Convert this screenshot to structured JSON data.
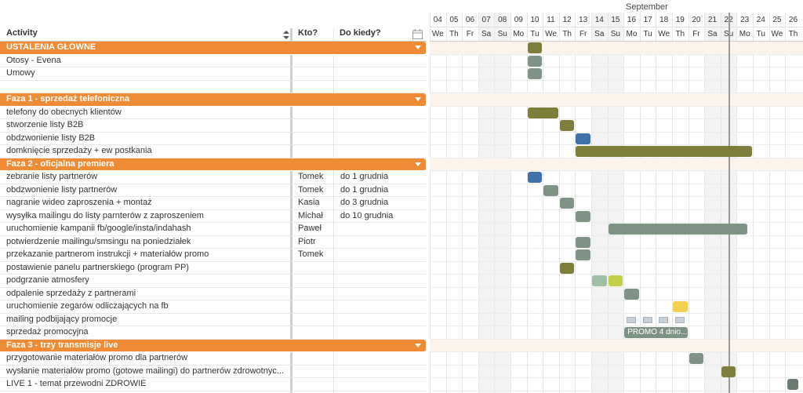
{
  "columns": {
    "activity": "Activity",
    "who": "Kto?",
    "when": "Do kiedy?"
  },
  "month": "September",
  "days": [
    {
      "n": "04",
      "d": "We"
    },
    {
      "n": "05",
      "d": "Th"
    },
    {
      "n": "06",
      "d": "Fr"
    },
    {
      "n": "07",
      "d": "Sa"
    },
    {
      "n": "08",
      "d": "Su"
    },
    {
      "n": "09",
      "d": "Mo"
    },
    {
      "n": "10",
      "d": "Tu"
    },
    {
      "n": "11",
      "d": "We"
    },
    {
      "n": "12",
      "d": "Th"
    },
    {
      "n": "13",
      "d": "Fr"
    },
    {
      "n": "14",
      "d": "Sa"
    },
    {
      "n": "15",
      "d": "Su"
    },
    {
      "n": "16",
      "d": "Mo"
    },
    {
      "n": "17",
      "d": "Tu"
    },
    {
      "n": "18",
      "d": "We"
    },
    {
      "n": "19",
      "d": "Th"
    },
    {
      "n": "20",
      "d": "Fr"
    },
    {
      "n": "21",
      "d": "Sa"
    },
    {
      "n": "22",
      "d": "Su"
    },
    {
      "n": "23",
      "d": "Mo"
    },
    {
      "n": "24",
      "d": "Tu"
    },
    {
      "n": "25",
      "d": "We"
    },
    {
      "n": "26",
      "d": "Th"
    }
  ],
  "rows": [
    {
      "type": "group",
      "activity": "USTALENIA GŁÓWNE"
    },
    {
      "activity": "Otosy - Evena",
      "who": "",
      "when": ""
    },
    {
      "activity": "Umowy",
      "who": "",
      "when": ""
    },
    {
      "activity": "",
      "who": "",
      "when": ""
    },
    {
      "type": "group",
      "activity": "Faza 1 - sprzedaż telefoniczna"
    },
    {
      "activity": "telefony do obecnych klientów",
      "who": "",
      "when": ""
    },
    {
      "activity": "stworzenie listy B2B",
      "who": "",
      "when": ""
    },
    {
      "activity": "obdzwonienie listy B2B",
      "who": "",
      "when": ""
    },
    {
      "activity": "domknięcie sprzedaży + ew postkania",
      "who": "",
      "when": ""
    },
    {
      "type": "group",
      "activity": "Faza 2 - oficjalna premiera"
    },
    {
      "activity": "zebranie listy partnerów",
      "who": "Tomek",
      "when": "do 1 grudnia"
    },
    {
      "activity": "obdzwonienie listy partnerów",
      "who": "Tomek",
      "when": "do 1 grudnia"
    },
    {
      "activity": "nagranie wideo zaproszenia + montaż",
      "who": "Kasia",
      "when": "do 3 grudnia"
    },
    {
      "activity": "wysyłka mailingu do listy parnterów z zaproszeniem",
      "who": "Michał",
      "when": "do 10 grudnia"
    },
    {
      "activity": "uruchomienie kampanii fb/google/insta/indahash",
      "who": "Paweł",
      "when": ""
    },
    {
      "activity": "potwierdzenie mailingu/smsingu na poniedziałek",
      "who": "Piotr",
      "when": ""
    },
    {
      "activity": "przekazanie partnerom instrukcji + materiałów promo",
      "who": "Tomek",
      "when": ""
    },
    {
      "activity": "postawienie panelu partnerskiego (program PP)",
      "who": "",
      "when": ""
    },
    {
      "activity": "podgrzanie atmosfery",
      "who": "",
      "when": ""
    },
    {
      "activity": "odpalenie sprzedaży z partnerami",
      "who": "",
      "when": ""
    },
    {
      "activity": "uruchomienie zegarów odliczających na fb",
      "who": "",
      "when": ""
    },
    {
      "activity": "mailing podbijający promocje",
      "who": "",
      "when": ""
    },
    {
      "activity": "sprzedaż promocyjna",
      "who": "",
      "when": ""
    },
    {
      "type": "group",
      "activity": "Faza 3 - trzy transmisje live"
    },
    {
      "activity": "przygotowanie materiałów promo dla partnerów",
      "who": "",
      "when": ""
    },
    {
      "activity": "wysłanie materiałów  promo (gotowe mailingi) do partnerów  zdrowotnyc...",
      "who": "",
      "when": ""
    },
    {
      "activity": "LIVE 1 - temat przewodni ZDROWIE",
      "who": "",
      "when": ""
    }
  ],
  "bars": [
    {
      "row": 0,
      "start": 6,
      "len": 1,
      "color": "#7d7d3c"
    },
    {
      "row": 1,
      "start": 6,
      "len": 1,
      "color": "#7f9486"
    },
    {
      "row": 2,
      "start": 6,
      "len": 1,
      "color": "#7f9486"
    },
    {
      "row": 5,
      "start": 6,
      "len": 2,
      "color": "#7d7d3c"
    },
    {
      "row": 6,
      "start": 8,
      "len": 1,
      "color": "#7d7d3c"
    },
    {
      "row": 7,
      "start": 9,
      "len": 1,
      "color": "#3f72a8"
    },
    {
      "row": 8,
      "start": 9,
      "len": 11,
      "color": "#7d7d3c"
    },
    {
      "row": 10,
      "start": 6,
      "len": 1,
      "color": "#3f72a8"
    },
    {
      "row": 11,
      "start": 7,
      "len": 1,
      "color": "#7f9486"
    },
    {
      "row": 12,
      "start": 8,
      "len": 1,
      "color": "#7f9486"
    },
    {
      "row": 13,
      "start": 9,
      "len": 1,
      "color": "#7f9486"
    },
    {
      "row": 14,
      "start": 11,
      "len": 8.7,
      "color": "#7f9486"
    },
    {
      "row": 15,
      "start": 9,
      "len": 1,
      "color": "#7f9486"
    },
    {
      "row": 16,
      "start": 9,
      "len": 1,
      "color": "#7f9486"
    },
    {
      "row": 17,
      "start": 8,
      "len": 1,
      "color": "#7d7d3c"
    },
    {
      "row": 18,
      "start": 10,
      "len": 1,
      "color": "#9cbfa5"
    },
    {
      "row": 18,
      "start": 11,
      "len": 1,
      "color": "#c3cf48"
    },
    {
      "row": 19,
      "start": 12,
      "len": 1,
      "color": "#7f9486"
    },
    {
      "row": 20,
      "start": 15,
      "len": 1,
      "color": "#f2d14f"
    },
    {
      "row": 24,
      "start": 16,
      "len": 1,
      "color": "#7f9486"
    },
    {
      "row": 25,
      "start": 18,
      "len": 1,
      "color": "#7d7d3c"
    }
  ],
  "promo": {
    "label": "PROMO 4 dnio..."
  },
  "icons": {
    "calendar": "calendar-icon",
    "sort": "sort-icon",
    "mail": "mail-icon",
    "avatar": "avatar-icon"
  }
}
